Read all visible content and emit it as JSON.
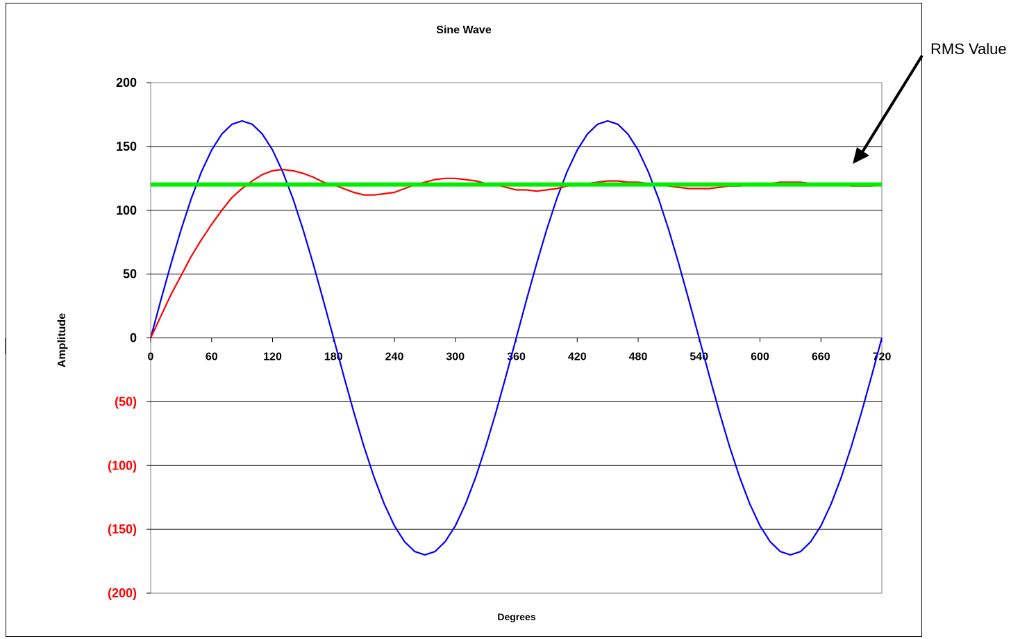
{
  "chart_data": {
    "type": "line",
    "title": "Sine Wave",
    "xlabel": "Degrees",
    "ylabel": "Amplitude",
    "xlim": [
      0,
      720
    ],
    "ylim": [
      -200,
      200
    ],
    "x_ticks": [
      "0",
      "60",
      "120",
      "180",
      "240",
      "300",
      "360",
      "420",
      "480",
      "540",
      "600",
      "660",
      "720"
    ],
    "x_tick_values": [
      0,
      60,
      120,
      180,
      240,
      300,
      360,
      420,
      480,
      540,
      600,
      660,
      720
    ],
    "y_ticks": [
      {
        "value": 200,
        "label": "200",
        "negative": false
      },
      {
        "value": 150,
        "label": "150",
        "negative": false
      },
      {
        "value": 100,
        "label": "100",
        "negative": false
      },
      {
        "value": 50,
        "label": "50",
        "negative": false
      },
      {
        "value": 0,
        "label": "0",
        "negative": false
      },
      {
        "value": -50,
        "label": "(50)",
        "negative": true
      },
      {
        "value": -100,
        "label": "(100)",
        "negative": true
      },
      {
        "value": -150,
        "label": "(150)",
        "negative": true
      },
      {
        "value": -200,
        "label": "(200)",
        "negative": true
      }
    ],
    "grid": "horizontal",
    "colors": {
      "sine": "#0000ff",
      "running_rms": "#ff0000",
      "rms_constant": "#00ee00",
      "negative_tick": "#ff0000",
      "positive_tick": "#000000"
    },
    "series": [
      {
        "key": "sine",
        "x": [
          0,
          10,
          20,
          30,
          40,
          50,
          60,
          70,
          80,
          90,
          100,
          110,
          120,
          130,
          140,
          150,
          160,
          170,
          180,
          190,
          200,
          210,
          220,
          230,
          240,
          250,
          260,
          270,
          280,
          290,
          300,
          310,
          320,
          330,
          340,
          350,
          360,
          370,
          380,
          390,
          400,
          410,
          420,
          430,
          440,
          450,
          460,
          470,
          480,
          490,
          500,
          510,
          520,
          530,
          540,
          550,
          560,
          570,
          580,
          590,
          600,
          610,
          620,
          630,
          640,
          650,
          660,
          670,
          680,
          690,
          700,
          710,
          720
        ],
        "values": [
          0,
          29.5,
          58.1,
          85,
          109.3,
          130.2,
          147.2,
          159.7,
          167.4,
          170,
          167.4,
          159.7,
          147.2,
          130.2,
          109.3,
          85,
          58.1,
          29.5,
          0,
          -29.5,
          -58.1,
          -85,
          -109.3,
          -130.2,
          -147.2,
          -159.7,
          -167.4,
          -170,
          -167.4,
          -159.7,
          -147.2,
          -130.2,
          -109.3,
          -85,
          -58.1,
          -29.5,
          0,
          29.5,
          58.1,
          85,
          109.3,
          130.2,
          147.2,
          159.7,
          167.4,
          170,
          167.4,
          159.7,
          147.2,
          130.2,
          109.3,
          85,
          58.1,
          29.5,
          0,
          -29.5,
          -58.1,
          -85,
          -109.3,
          -130.2,
          -147.2,
          -159.7,
          -167.4,
          -170,
          -167.4,
          -159.7,
          -147.2,
          -130.2,
          -109.3,
          -85,
          -58.1,
          -29.5,
          0
        ]
      },
      {
        "key": "running_rms",
        "x": [
          0,
          10,
          20,
          30,
          40,
          50,
          60,
          70,
          80,
          90,
          100,
          110,
          120,
          130,
          140,
          150,
          160,
          170,
          180,
          190,
          200,
          210,
          220,
          230,
          240,
          250,
          260,
          270,
          280,
          290,
          300,
          310,
          320,
          330,
          340,
          350,
          360,
          370,
          380,
          390,
          400,
          410,
          420,
          430,
          440,
          450,
          460,
          470,
          480,
          490,
          500,
          510,
          520,
          530,
          540,
          550,
          560,
          570,
          580,
          590,
          600,
          610,
          620,
          630,
          640,
          650,
          660,
          670,
          680,
          690,
          700,
          710,
          720
        ],
        "values": [
          0,
          17,
          34,
          49,
          64,
          77,
          89,
          100,
          110,
          117,
          123,
          128,
          131,
          132,
          131,
          129,
          126,
          122,
          120,
          117,
          114,
          112,
          112,
          113,
          114,
          117,
          120,
          122,
          124,
          125,
          125,
          124,
          123,
          121,
          120,
          118,
          116,
          116,
          115,
          116,
          117,
          119,
          120,
          121,
          122,
          123,
          123,
          122,
          122,
          121,
          120,
          119,
          118,
          117,
          117,
          117,
          118,
          119,
          119,
          120,
          121,
          121,
          122,
          122,
          122,
          121,
          121,
          120,
          120,
          119,
          119,
          119,
          120
        ]
      },
      {
        "key": "rms_constant",
        "x": [
          0,
          720
        ],
        "values": [
          120.2,
          120.2
        ]
      }
    ],
    "annotations": [
      {
        "text": "RMS Value",
        "points_to": {
          "x": 660,
          "y": 130
        }
      }
    ]
  }
}
